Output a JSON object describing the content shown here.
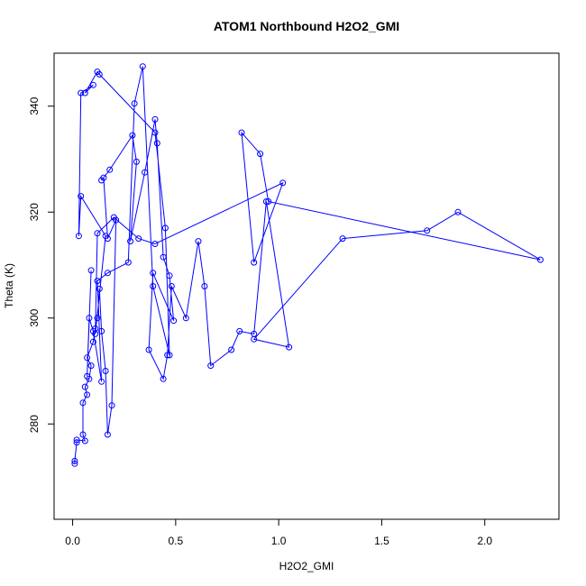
{
  "chart_data": {
    "type": "scatter",
    "title": "ATOM1 Northbound H2O2_GMI",
    "xlabel": "H2O2_GMI",
    "ylabel": "Theta (K)",
    "xlim": [
      -0.09,
      2.36
    ],
    "ylim": [
      262,
      350
    ],
    "xticks": [
      0.0,
      0.5,
      1.0,
      1.5,
      2.0
    ],
    "xtick_labels": [
      "0.0",
      "0.5",
      "1.0",
      "1.5",
      "2.0"
    ],
    "yticks": [
      280,
      300,
      320,
      340
    ],
    "ytick_labels": [
      "280",
      "300",
      "320",
      "340"
    ],
    "grid": false,
    "legend": "none",
    "connect_points": true,
    "color": "#0000ff",
    "series": [
      {
        "x": [
          0.01,
          0.01,
          0.02,
          0.02,
          0.06,
          0.05,
          0.05,
          0.07,
          0.06,
          0.08,
          0.09,
          0.07,
          0.1,
          0.11,
          0.12,
          0.13,
          0.14,
          0.16,
          0.17,
          0.19,
          0.21,
          0.17,
          0.15,
          0.14,
          0.18,
          0.29,
          0.31,
          0.28,
          0.35,
          0.4,
          0.41,
          0.44,
          0.47,
          0.49,
          0.39,
          0.37,
          0.44,
          0.46,
          0.48,
          0.55,
          0.61,
          0.64,
          0.67,
          0.77,
          0.81,
          0.88,
          0.94,
          1.05,
          0.88,
          1.31,
          1.72,
          1.87,
          2.27,
          0.95,
          0.91,
          0.82,
          0.88,
          1.02,
          0.4,
          0.32,
          0.2,
          0.12,
          0.11,
          0.16,
          0.04,
          0.03,
          0.04,
          0.1,
          0.06,
          0.12,
          0.13,
          0.4,
          0.45,
          0.47,
          0.39,
          0.34,
          0.3,
          0.27,
          0.17,
          0.12,
          0.14,
          0.1,
          0.08,
          0.07,
          0.09
        ],
        "y": [
          272.5,
          273.0,
          276.5,
          277.0,
          276.8,
          278.0,
          284.0,
          285.5,
          287.0,
          288.5,
          291.0,
          292.5,
          295.5,
          298.0,
          300.0,
          305.5,
          297.5,
          290.0,
          278.0,
          283.5,
          318.5,
          315.0,
          326.5,
          326.0,
          328.0,
          334.5,
          329.5,
          314.5,
          327.5,
          337.5,
          333.0,
          311.5,
          308.0,
          299.5,
          308.5,
          294.0,
          288.5,
          293.0,
          306.0,
          300.0,
          314.5,
          306.0,
          291.0,
          294.0,
          297.5,
          297.0,
          322.0,
          294.5,
          296.0,
          315.0,
          316.5,
          320.0,
          311.0,
          322.0,
          331.0,
          335.0,
          310.5,
          325.5,
          314.0,
          315.0,
          319.0,
          316.0,
          297.0,
          315.5,
          323.0,
          315.5,
          342.5,
          344.0,
          342.5,
          346.5,
          346.0,
          335.0,
          317.0,
          293.0,
          306.0,
          347.5,
          340.5,
          310.5,
          308.5,
          307.0,
          288.0,
          297.5,
          300.0,
          289.0,
          309.0
        ]
      }
    ]
  }
}
